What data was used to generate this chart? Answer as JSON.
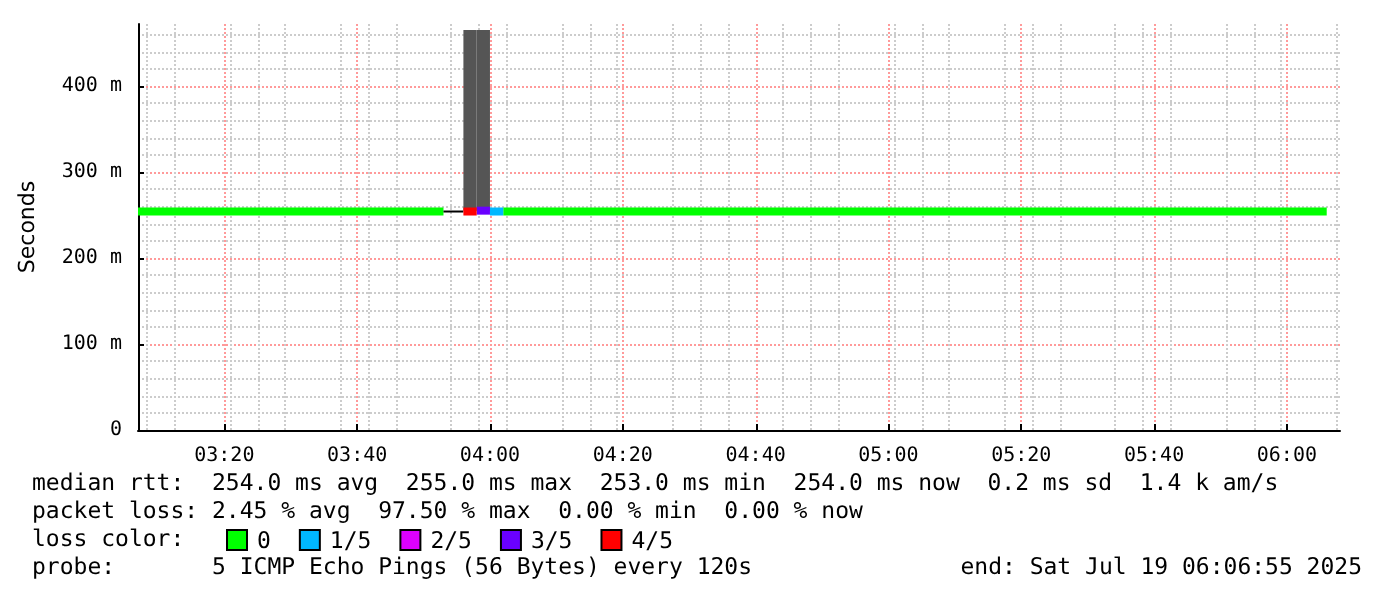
{
  "chart_data": {
    "type": "line",
    "ylabel": "Seconds",
    "legend_title": "loss color:",
    "xlim": [
      "2025-07-19T03:07",
      "2025-07-19T06:08"
    ],
    "xticks": [
      {
        "value": "2025-07-19T03:20",
        "label": "03:20"
      },
      {
        "value": "2025-07-19T03:40",
        "label": "03:40"
      },
      {
        "value": "2025-07-19T04:00",
        "label": "04:00"
      },
      {
        "value": "2025-07-19T04:20",
        "label": "04:20"
      },
      {
        "value": "2025-07-19T04:40",
        "label": "04:40"
      },
      {
        "value": "2025-07-19T05:00",
        "label": "05:00"
      },
      {
        "value": "2025-07-19T05:20",
        "label": "05:20"
      },
      {
        "value": "2025-07-19T05:40",
        "label": "05:40"
      },
      {
        "value": "2025-07-19T06:00",
        "label": "06:00"
      }
    ],
    "ylim": [
      0,
      472
    ],
    "yticks": [
      0,
      {
        "value": 100,
        "label": "100 m"
      },
      {
        "value": 200,
        "label": "200 m"
      },
      {
        "value": 300,
        "label": "300 m"
      },
      {
        "value": 400,
        "label": "400 m"
      }
    ],
    "grid": true,
    "legend": "bottom",
    "marker": "none",
    "line_style": "solid",
    "series": [
      {
        "type": "bar",
        "color": "#555555",
        "x": [
          "2025-07-19T03:56",
          "2025-07-19T03:58"
        ],
        "base": [
          255,
          255
        ],
        "values": [
          210,
          210
        ]
      },
      {
        "name": "0",
        "color": "#00ff00",
        "x": [
          "2025-07-19T03:07",
          "2025-07-19T03:53"
        ],
        "values": [
          254,
          254
        ]
      },
      {
        "name": "0",
        "color": "#00ff00",
        "x": [
          "2025-07-19T04:02",
          "2025-07-19T06:06"
        ],
        "values": [
          254,
          254
        ]
      },
      {
        "color": "#000000",
        "x": [
          "2025-07-19T03:53",
          "2025-07-19T03:56"
        ],
        "values": [
          254,
          254
        ]
      },
      {
        "name": "1/5",
        "color": "#00b8ff",
        "x": [
          "2025-07-19T04:00",
          "2025-07-19T04:02"
        ],
        "values": [
          254,
          254
        ]
      },
      {
        "name": "2/5",
        "color": "#dd00ff"
      },
      {
        "name": "3/5",
        "color": "#6a00ff",
        "x": [
          "2025-07-19T03:58",
          "2025-07-19T04:00"
        ],
        "values": [
          255,
          255
        ]
      },
      {
        "name": "4/5",
        "color": "#ff0000",
        "x": [
          "2025-07-19T03:56",
          "2025-07-19T03:58"
        ],
        "values": [
          254,
          254
        ]
      }
    ],
    "annotations": [
      "median rtt:  254.0 ms avg  255.0 ms max  253.0 ms min  254.0 ms now  0.2 ms sd  1.4 k am/s",
      "packet loss: 2.45 % avg  97.50 % max  0.00 % min  0.00 % now",
      "probe:       5 ICMP Echo Pings (56 Bytes) every 120s",
      "end: Sat Jul 19 06:06:55 2025"
    ]
  }
}
